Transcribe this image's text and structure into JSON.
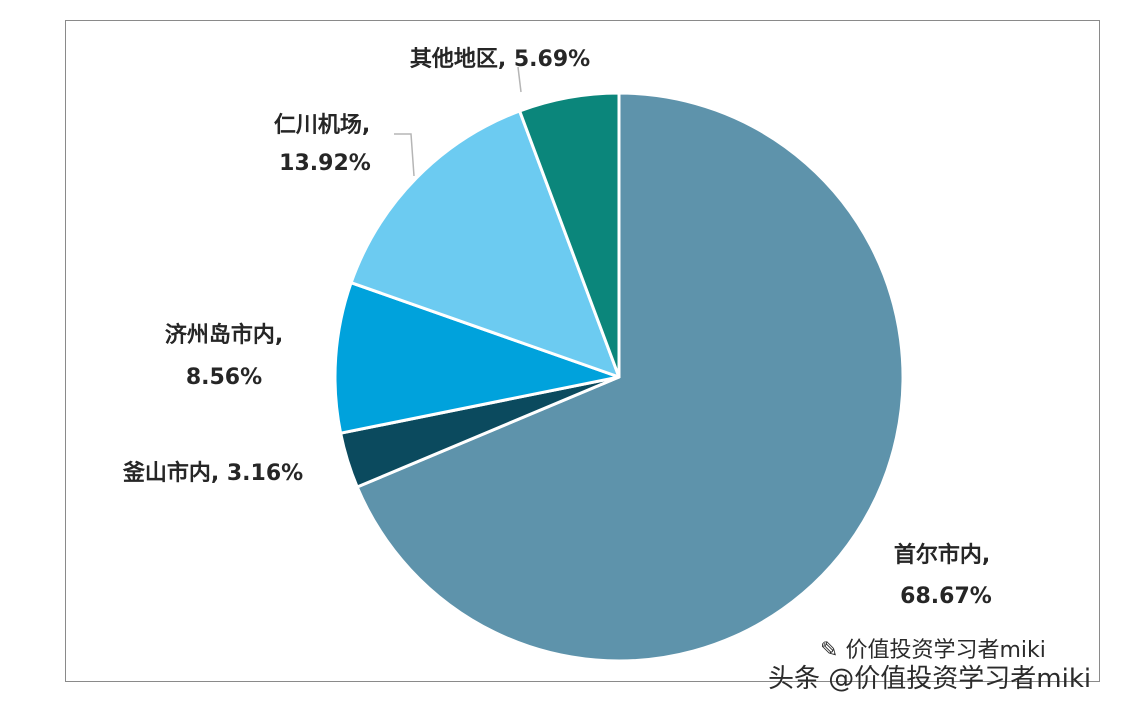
{
  "chart_data": {
    "type": "pie",
    "title": "",
    "slices": [
      {
        "label": "首尔市内",
        "value": 68.67,
        "display": "68.67%",
        "color": "#5e93ab"
      },
      {
        "label": "釜山市内",
        "value": 3.16,
        "display": "3.16%",
        "color": "#0b4a5e"
      },
      {
        "label": "济州岛市内",
        "value": 8.56,
        "display": "8.56%",
        "color": "#00a2dc"
      },
      {
        "label": "仁川机场",
        "value": 13.92,
        "display": "13.92%",
        "color": "#6ccbf1"
      },
      {
        "label": "其他地区",
        "value": 5.69,
        "display": "5.69%",
        "color": "#0b867b"
      }
    ],
    "legend": "none"
  },
  "watermark": {
    "line1": "价值投资学习者miki",
    "line2": "头条 @价值投资学习者miki"
  },
  "colors": {
    "frame_border": "#8a8a8a",
    "slice_border": "#ffffff"
  }
}
